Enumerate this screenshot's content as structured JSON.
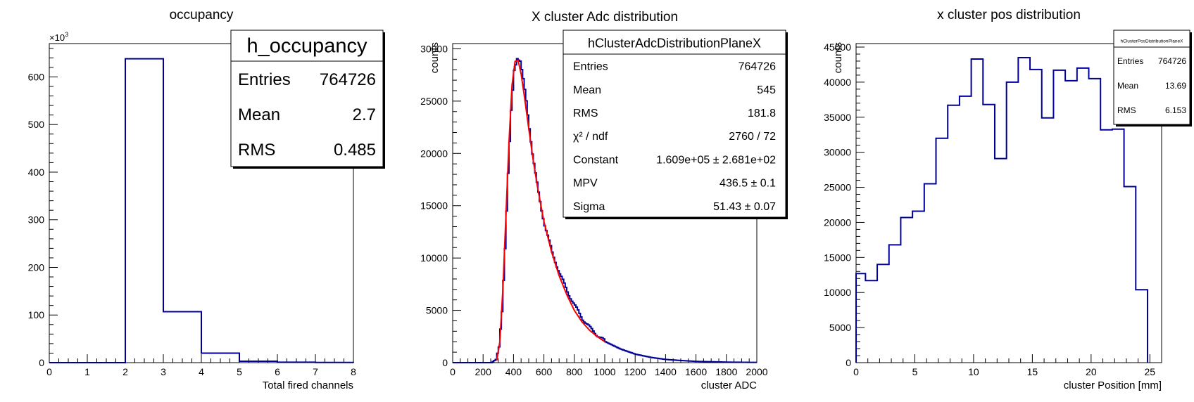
{
  "chart_data": [
    {
      "type": "bar",
      "histogram": true,
      "title": "occupancy",
      "xlabel": "Total fired channels",
      "ylabel": "",
      "y_exponent_label": "×10",
      "y_exponent_value": "3",
      "xlim": [
        0,
        8
      ],
      "ylim": [
        0,
        670000
      ],
      "x_ticks": [
        0,
        1,
        2,
        3,
        4,
        5,
        6,
        7,
        8
      ],
      "x_tick_labels": [
        "0",
        "1",
        "2",
        "3",
        "4",
        "5",
        "6",
        "7",
        "8"
      ],
      "y_ticks": [
        0,
        100000,
        200000,
        300000,
        400000,
        500000,
        600000
      ],
      "y_tick_labels": [
        "0",
        "100",
        "200",
        "300",
        "400",
        "500",
        "600"
      ],
      "bin_edges": [
        0,
        1,
        2,
        3,
        4,
        5,
        6,
        7,
        8
      ],
      "values": [
        0,
        0,
        638000,
        107000,
        20000,
        3000,
        1000,
        300
      ],
      "line_color": "#000099",
      "stats": {
        "name": "h_occupancy",
        "rows": [
          {
            "label": "Entries",
            "value": "764726"
          },
          {
            "label": "Mean",
            "value": "2.7"
          },
          {
            "label": "RMS",
            "value": "0.485"
          }
        ]
      }
    },
    {
      "type": "bar",
      "histogram": true,
      "title": "X cluster Adc distribution",
      "xlabel": "cluster ADC",
      "ylabel": "counts",
      "xlim": [
        0,
        2000
      ],
      "ylim": [
        0,
        30500
      ],
      "x_ticks": [
        0,
        200,
        400,
        600,
        800,
        1000,
        1200,
        1400,
        1600,
        1800,
        2000
      ],
      "x_tick_labels": [
        "0",
        "200",
        "400",
        "600",
        "800",
        "1000",
        "1200",
        "1400",
        "1600",
        "1800",
        "2000"
      ],
      "y_ticks": [
        0,
        5000,
        10000,
        15000,
        20000,
        25000,
        30000
      ],
      "y_tick_labels": [
        "0",
        "5000",
        "10000",
        "15000",
        "20000",
        "25000",
        "30000"
      ],
      "line_color": "#000099",
      "fit_color": "#ff0000",
      "curve_points": [
        [
          0,
          0
        ],
        [
          250,
          0
        ],
        [
          280,
          300
        ],
        [
          300,
          1500
        ],
        [
          320,
          5000
        ],
        [
          340,
          11000
        ],
        [
          360,
          18000
        ],
        [
          380,
          24000
        ],
        [
          400,
          28000
        ],
        [
          420,
          29200
        ],
        [
          440,
          28800
        ],
        [
          460,
          27000
        ],
        [
          480,
          25000
        ],
        [
          500,
          22500
        ],
        [
          520,
          20000
        ],
        [
          540,
          18000
        ],
        [
          560,
          16200
        ],
        [
          580,
          14600
        ],
        [
          600,
          13200
        ],
        [
          650,
          10500
        ],
        [
          700,
          8500
        ],
        [
          750,
          6800
        ],
        [
          800,
          5400
        ],
        [
          850,
          4200
        ],
        [
          900,
          3300
        ],
        [
          950,
          2600
        ],
        [
          1000,
          2000
        ],
        [
          1100,
          1300
        ],
        [
          1200,
          800
        ],
        [
          1300,
          500
        ],
        [
          1400,
          300
        ],
        [
          1500,
          200
        ],
        [
          1600,
          120
        ],
        [
          1800,
          50
        ],
        [
          2000,
          20
        ]
      ],
      "fit_curve": [
        [
          290,
          200
        ],
        [
          310,
          2000
        ],
        [
          330,
          7000
        ],
        [
          350,
          14000
        ],
        [
          370,
          21000
        ],
        [
          390,
          26500
        ],
        [
          410,
          28800
        ],
        [
          430,
          28900
        ],
        [
          450,
          27600
        ],
        [
          470,
          25600
        ],
        [
          500,
          22400
        ],
        [
          530,
          19300
        ],
        [
          560,
          16600
        ],
        [
          600,
          13500
        ],
        [
          650,
          10600
        ],
        [
          700,
          8300
        ],
        [
          750,
          6500
        ],
        [
          800,
          5000
        ],
        [
          850,
          3900
        ],
        [
          900,
          3100
        ],
        [
          950,
          2500
        ],
        [
          1000,
          2000
        ]
      ],
      "stats": {
        "name": "hClusterAdcDistributionPlaneX",
        "rows": [
          {
            "label": "Entries",
            "value": "764726"
          },
          {
            "label": "Mean",
            "value": "545"
          },
          {
            "label": "RMS",
            "value": "181.8"
          },
          {
            "label": "χ² / ndf",
            "value": "2760 / 72"
          },
          {
            "label": "Constant",
            "value": "1.609e+05 ± 2.681e+02"
          },
          {
            "label": "MPV",
            "value": "436.5 ± 0.1"
          },
          {
            "label": "Sigma",
            "value": "51.43 ± 0.07"
          }
        ]
      }
    },
    {
      "type": "bar",
      "histogram": true,
      "title": "x cluster pos distribution",
      "xlabel": "cluster Position [mm]",
      "ylabel": "counts",
      "xlim": [
        0,
        26
      ],
      "ylim": [
        0,
        45500
      ],
      "x_ticks": [
        0,
        5,
        10,
        15,
        20,
        25
      ],
      "x_tick_labels": [
        "0",
        "5",
        "10",
        "15",
        "20",
        "25"
      ],
      "y_ticks": [
        0,
        5000,
        10000,
        15000,
        20000,
        25000,
        30000,
        35000,
        40000,
        45000
      ],
      "y_tick_labels": [
        "0",
        "5000",
        "10000",
        "15000",
        "20000",
        "25000",
        "30000",
        "35000",
        "40000",
        "45000"
      ],
      "bin_edges": [
        0,
        0.8,
        1.8,
        2.8,
        3.8,
        4.8,
        5.8,
        6.8,
        7.8,
        8.8,
        9.8,
        10.8,
        11.8,
        12.8,
        13.8,
        14.8,
        15.8,
        16.8,
        17.8,
        18.8,
        19.8,
        20.8,
        21.8,
        22.8,
        23.8,
        24.8
      ],
      "values": [
        12700,
        11700,
        14000,
        16800,
        20700,
        21600,
        25500,
        32000,
        36700,
        38000,
        43300,
        36800,
        29100,
        40000,
        43500,
        41800,
        34900,
        41700,
        40200,
        42000,
        40500,
        33200,
        33300,
        25100,
        10400
      ],
      "line_color": "#000099",
      "stats": {
        "name": "hClusterPosDistributionPlaneX",
        "rows": [
          {
            "label": "Entries",
            "value": "764726"
          },
          {
            "label": "Mean",
            "value": "13.69"
          },
          {
            "label": "RMS",
            "value": "6.153"
          }
        ]
      }
    }
  ]
}
